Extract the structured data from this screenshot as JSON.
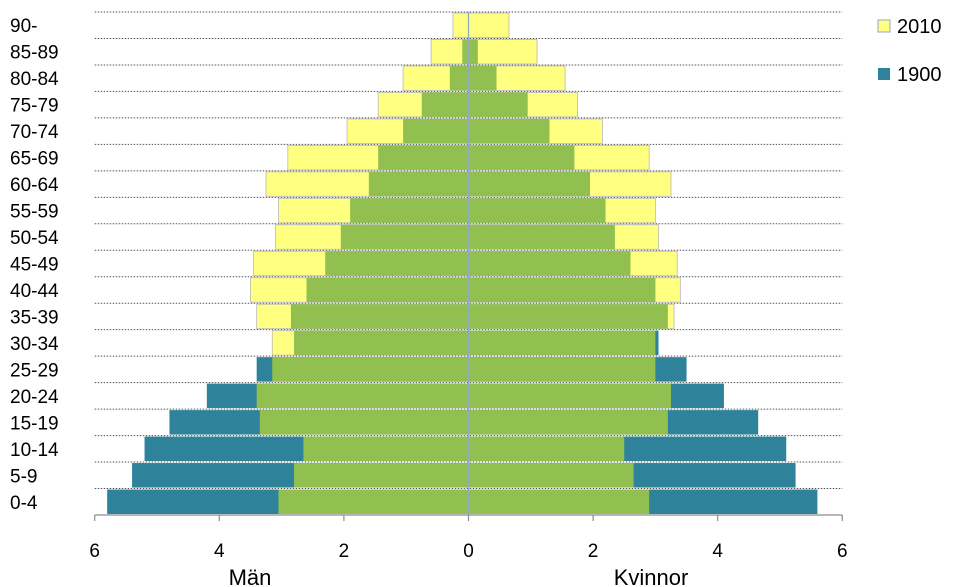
{
  "chart_data": {
    "type": "bar",
    "orientation": "horizontal",
    "layout": "population-pyramid",
    "title": "",
    "xlabel_left": "Män",
    "xlabel_right": "Kvinnor",
    "xlim": [
      -6,
      6
    ],
    "x_ticks": [
      6,
      4,
      2,
      0,
      2,
      4,
      6
    ],
    "grid": "horizontal-dotted",
    "legend_position": "right-top",
    "categories": [
      "0-4",
      "5-9",
      "10-14",
      "15-19",
      "20-24",
      "25-29",
      "30-34",
      "35-39",
      "40-44",
      "45-49",
      "50-54",
      "55-59",
      "60-64",
      "65-69",
      "70-74",
      "75-79",
      "80-84",
      "85-89",
      "90-"
    ],
    "series": [
      {
        "name": "2010",
        "color": "#ffff80",
        "men": [
          3.05,
          2.8,
          2.65,
          3.35,
          3.4,
          3.15,
          3.15,
          3.4,
          3.5,
          3.45,
          3.1,
          3.05,
          3.25,
          2.9,
          1.95,
          1.45,
          1.05,
          0.6,
          0.25
        ],
        "women": [
          2.9,
          2.65,
          2.5,
          3.2,
          3.25,
          3.0,
          3.0,
          3.3,
          3.4,
          3.35,
          3.05,
          3.0,
          3.25,
          2.9,
          2.15,
          1.75,
          1.55,
          1.1,
          0.65
        ]
      },
      {
        "name": "1900",
        "color": "#2e8299",
        "men": [
          5.8,
          5.4,
          5.2,
          4.8,
          4.2,
          3.4,
          2.8,
          2.85,
          2.6,
          2.3,
          2.05,
          1.9,
          1.6,
          1.45,
          1.05,
          0.75,
          0.3,
          0.1,
          0.0
        ],
        "women": [
          5.6,
          5.25,
          5.1,
          4.65,
          4.1,
          3.5,
          3.05,
          3.2,
          3.0,
          2.6,
          2.35,
          2.2,
          1.95,
          1.7,
          1.3,
          0.95,
          0.45,
          0.15,
          0.0
        ]
      }
    ]
  }
}
